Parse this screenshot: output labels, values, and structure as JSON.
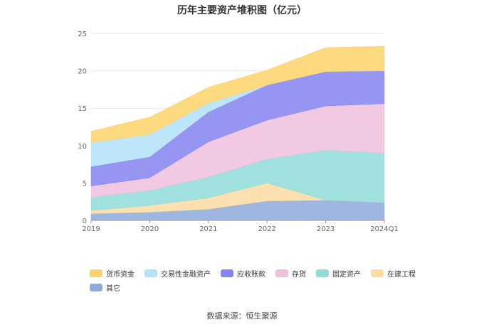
{
  "chart_data": {
    "type": "area",
    "stacked": true,
    "title": "历年主要资产堆积图（亿元）",
    "categories": [
      "2019",
      "2020",
      "2021",
      "2022",
      "2023",
      "2024Q1"
    ],
    "ylim": [
      0,
      25
    ],
    "yticks": [
      0,
      5,
      10,
      15,
      20,
      25
    ],
    "grid": true,
    "legend_position": "bottom",
    "series": [
      {
        "name": "其它",
        "color": "#8eaadb",
        "values": [
          0.9,
          1.1,
          1.5,
          2.6,
          2.7,
          2.4
        ]
      },
      {
        "name": "在建工程",
        "color": "#fddba2",
        "values": [
          0.4,
          0.9,
          1.5,
          2.4,
          0.0,
          0.0
        ]
      },
      {
        "name": "固定资产",
        "color": "#8fdcd9",
        "values": [
          1.8,
          2.0,
          2.8,
          3.2,
          6.7,
          6.6
        ]
      },
      {
        "name": "存货",
        "color": "#eec0dd",
        "values": [
          1.5,
          1.7,
          4.7,
          5.2,
          5.9,
          6.6
        ]
      },
      {
        "name": "应收账款",
        "color": "#8484f0",
        "values": [
          2.6,
          2.8,
          4.0,
          4.7,
          4.6,
          4.4
        ]
      },
      {
        "name": "交易性金融资产",
        "color": "#b3e2fa",
        "values": [
          3.2,
          3.0,
          1.2,
          0.0,
          0.0,
          0.0
        ]
      },
      {
        "name": "货币资金",
        "color": "#fdd268",
        "values": [
          1.5,
          2.3,
          2.1,
          2.0,
          3.2,
          3.3
        ]
      }
    ],
    "legend_order": [
      "货币资金",
      "交易性金融资产",
      "应收账款",
      "存货",
      "固定资产",
      "在建工程",
      "其它"
    ]
  },
  "source": "数据来源：恒生聚源"
}
